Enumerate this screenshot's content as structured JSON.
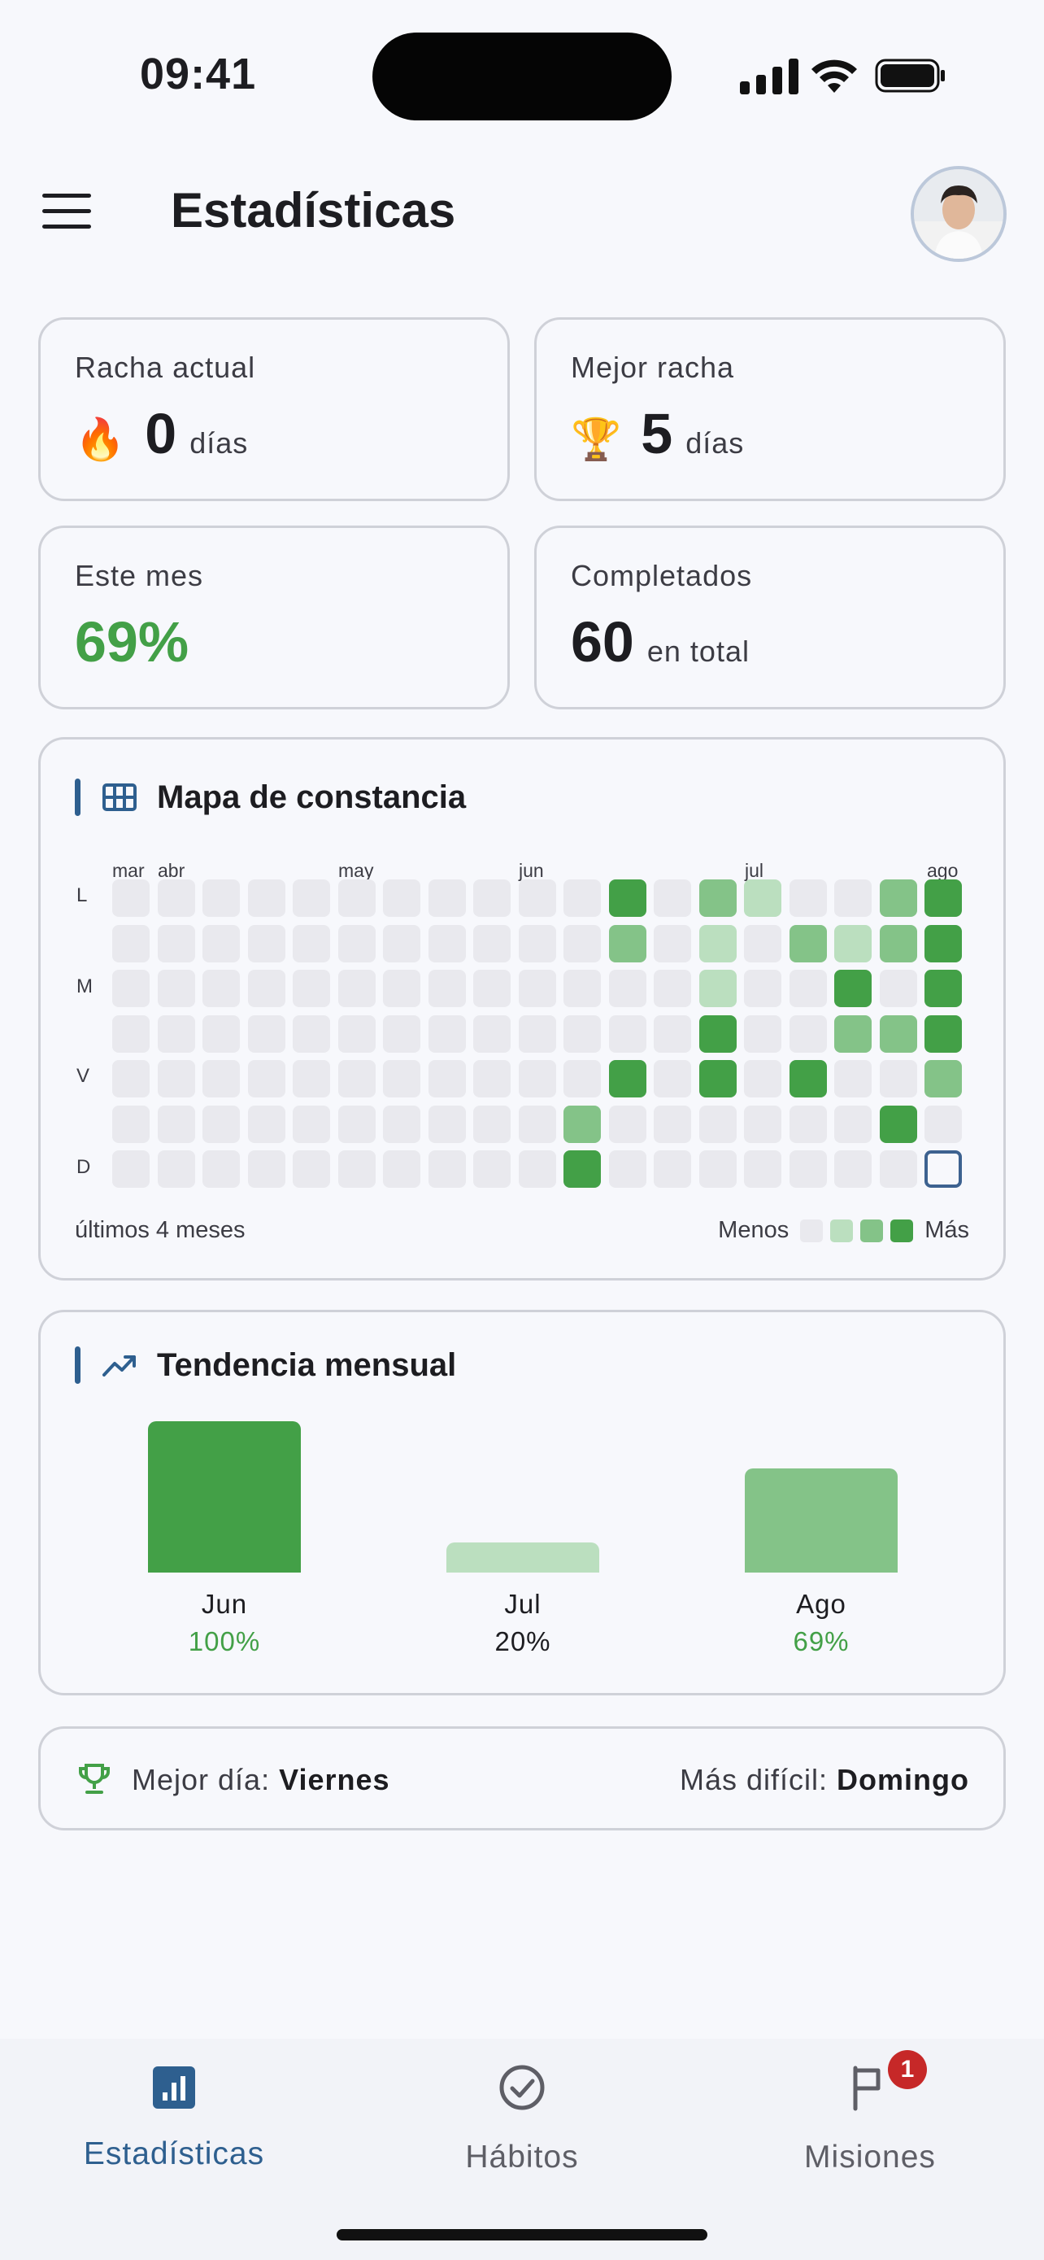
{
  "status_bar": {
    "time": "09:41"
  },
  "header": {
    "title": "Estadísticas"
  },
  "stats": {
    "current_streak": {
      "label": "Racha actual",
      "emoji": "🔥",
      "value": "0",
      "unit": "días"
    },
    "best_streak": {
      "label": "Mejor racha",
      "emoji": "🏆",
      "value": "5",
      "unit": "días"
    },
    "this_month": {
      "label": "Este mes",
      "value": "69%"
    },
    "completed": {
      "label": "Completados",
      "value": "60",
      "unit": "en total"
    }
  },
  "heatmap": {
    "title": "Mapa de constancia",
    "months": [
      "mar",
      "abr",
      "may",
      "jun",
      "jul",
      "ago"
    ],
    "day_labels": [
      "L",
      "M",
      "V",
      "D"
    ],
    "footer_left": "últimos 4 meses",
    "legend_less": "Menos",
    "legend_more": "Más",
    "columns": 19,
    "rows": 7,
    "levels": [
      [
        0,
        0,
        0,
        0,
        0,
        0,
        0,
        0,
        0,
        0,
        0,
        3,
        0,
        2,
        1,
        0,
        0,
        2,
        3
      ],
      [
        0,
        0,
        0,
        0,
        0,
        0,
        0,
        0,
        0,
        0,
        0,
        2,
        0,
        1,
        0,
        2,
        1,
        2,
        3
      ],
      [
        0,
        0,
        0,
        0,
        0,
        0,
        0,
        0,
        0,
        0,
        0,
        0,
        0,
        1,
        0,
        0,
        3,
        0,
        3
      ],
      [
        0,
        0,
        0,
        0,
        0,
        0,
        0,
        0,
        0,
        0,
        0,
        0,
        0,
        3,
        0,
        0,
        2,
        2,
        3
      ],
      [
        0,
        0,
        0,
        0,
        0,
        0,
        0,
        0,
        0,
        0,
        0,
        3,
        0,
        3,
        0,
        3,
        0,
        0,
        2
      ],
      [
        0,
        0,
        0,
        0,
        0,
        0,
        0,
        0,
        0,
        0,
        2,
        0,
        0,
        0,
        0,
        0,
        0,
        3,
        0
      ],
      [
        0,
        0,
        0,
        0,
        0,
        0,
        0,
        0,
        0,
        0,
        3,
        0,
        0,
        0,
        0,
        0,
        0,
        0,
        -1
      ]
    ],
    "colors": [
      "#e9e9ee",
      "#bbdfbf",
      "#84c388",
      "#43a047"
    ]
  },
  "trend": {
    "title": "Tendencia mensual",
    "chart_data": {
      "type": "bar",
      "categories": [
        "Jun",
        "Jul",
        "Ago"
      ],
      "values": [
        100,
        20,
        69
      ],
      "labels": [
        "100%",
        "20%",
        "69%"
      ],
      "ylim": [
        0,
        100
      ]
    },
    "colors": [
      "#43a047",
      "#bbdfbf",
      "#84c388"
    ],
    "label_colors": [
      "#43a047",
      "#1d1d21",
      "#43a047"
    ]
  },
  "best_day": {
    "left_label": "Mejor día:",
    "left_value": "Viernes",
    "right_label": "Más difícil:",
    "right_value": "Domingo"
  },
  "tabs": [
    {
      "label": "Estadísticas",
      "icon": "stats-icon",
      "active": true
    },
    {
      "label": "Hábitos",
      "icon": "check-circle-icon",
      "active": false
    },
    {
      "label": "Misiones",
      "icon": "flag-icon",
      "active": false,
      "badge": "1"
    }
  ]
}
